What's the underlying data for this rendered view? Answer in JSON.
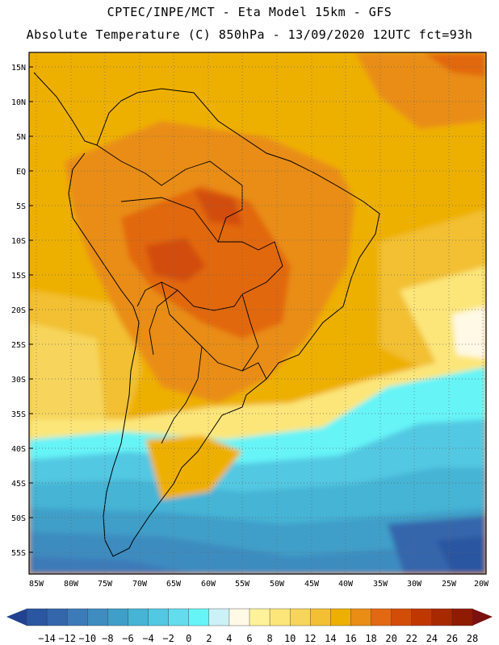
{
  "header": {
    "line1": "CPTEC/INPE/MCT -  Eta Model 15km - GFS",
    "line2": "Absolute Temperature (C) 850hPa - 13/09/2020 12UTC fct=93h"
  },
  "map": {
    "lat_labels": [
      "15N",
      "10N",
      "5N",
      "EQ",
      "5S",
      "10S",
      "15S",
      "20S",
      "25S",
      "30S",
      "35S",
      "40S",
      "45S",
      "50S",
      "55S"
    ],
    "lon_labels": [
      "85W",
      "80W",
      "75W",
      "70W",
      "65W",
      "60W",
      "55W",
      "50W",
      "45W",
      "40W",
      "35W",
      "30W",
      "25W",
      "20W"
    ]
  },
  "colorbar": {
    "labels": [
      "-14",
      "-12",
      "-10",
      "-8",
      "-6",
      "-4",
      "-2",
      "0",
      "2",
      "4",
      "6",
      "8",
      "10",
      "12",
      "14",
      "16",
      "18",
      "20",
      "22",
      "24",
      "26",
      "28"
    ],
    "colors": [
      "#21428f",
      "#2b56a1",
      "#3466ac",
      "#3d7ab8",
      "#3e8cc0",
      "#3f9fc8",
      "#45b4d5",
      "#52c8e2",
      "#63dded",
      "#66f4f7",
      "#ccf2f8",
      "#fff9e5",
      "#fff29a",
      "#fce679",
      "#f7d55c",
      "#f2c032",
      "#eeb000",
      "#e98d15",
      "#e26811",
      "#d24d07",
      "#bf3800",
      "#a82800",
      "#8f1b00",
      "#7a1010"
    ]
  }
}
